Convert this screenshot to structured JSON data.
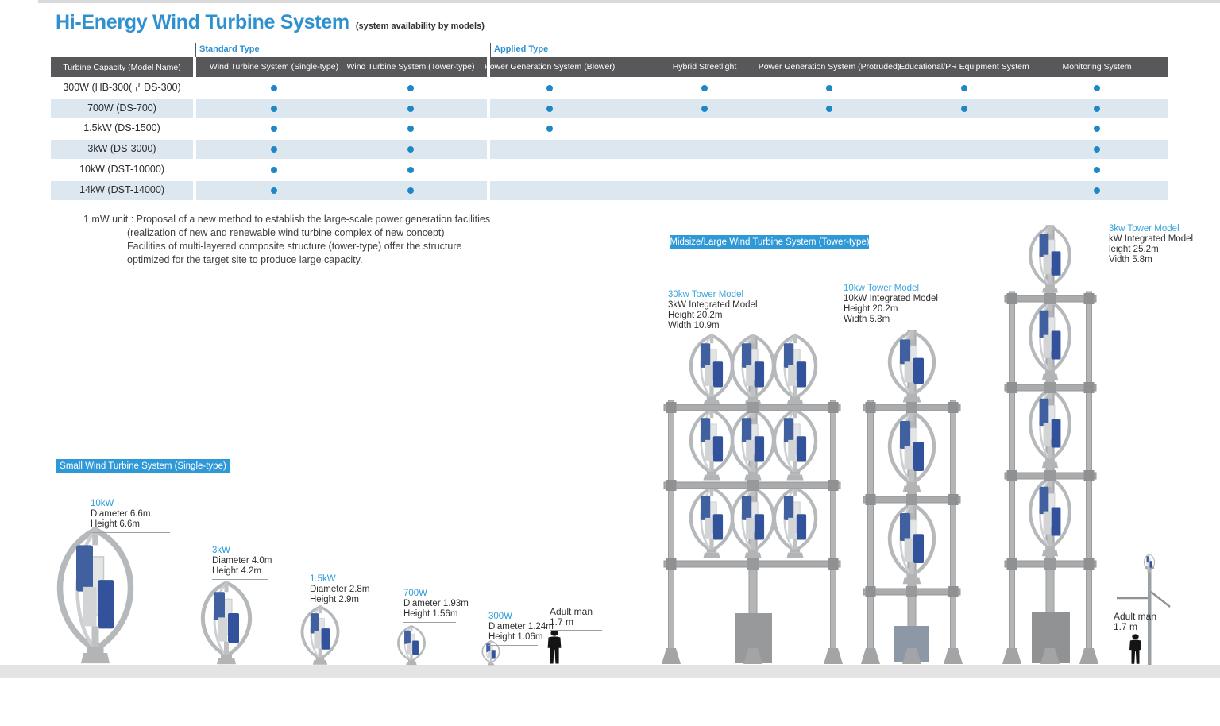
{
  "page": {
    "title": "Hi-Energy Wind Turbine System",
    "subtitle": "(system availability by models)"
  },
  "table": {
    "groups": [
      {
        "label": "Standard Type"
      },
      {
        "label": "Applied Type"
      }
    ],
    "row_header": "Turbine Capacity (Model Name)",
    "columns": [
      "Wind Turbine System (Single-type)",
      "Wind Turbine System (Tower-type)",
      "Power Generation System (Blower)",
      "Hybrid Streetlight",
      "Power Generation System (Protruded)",
      "Educational/PR Equipment System",
      "Monitoring System"
    ],
    "rows": [
      {
        "model": "300W (HB-300(구 DS-300)",
        "availability": [
          true,
          true,
          true,
          true,
          true,
          true,
          true
        ]
      },
      {
        "model": "700W (DS-700)",
        "availability": [
          true,
          true,
          true,
          true,
          true,
          true,
          true
        ]
      },
      {
        "model": "1.5kW (DS-1500)",
        "availability": [
          true,
          true,
          true,
          false,
          false,
          false,
          true
        ]
      },
      {
        "model": "3kW (DS-3000)",
        "availability": [
          true,
          true,
          false,
          false,
          false,
          false,
          true
        ]
      },
      {
        "model": "10kW (DST-10000)",
        "availability": [
          true,
          true,
          false,
          false,
          false,
          false,
          true
        ]
      },
      {
        "model": "14kW (DST-14000)",
        "availability": [
          true,
          true,
          false,
          false,
          false,
          false,
          true
        ]
      }
    ]
  },
  "note": {
    "lines": [
      "1 mW unit : Proposal of a new method to establish the large-scale power generation facilities",
      "(realization of new and renewable wind turbine complex of new concept)",
      "Facilities of multi-layered composite structure (tower-type) offer the structure",
      "optimized for the target site to produce large capacity."
    ]
  },
  "sections": {
    "midsize_badge": "Midsize/Large Wind Turbine System (Tower-type)",
    "small_badge": "Small Wind Turbine System (Single-type)"
  },
  "tower_models": [
    {
      "name": "30kw Tower Model",
      "specs": [
        "3kW Integrated Model",
        "Height 20.2m",
        "Width 10.9m"
      ]
    },
    {
      "name": "10kw Tower Model",
      "specs": [
        "10kW Integrated Model",
        "Height 20.2m",
        "Width 5.8m"
      ]
    },
    {
      "name": "3kw Tower Model",
      "specs": [
        "kW Integrated Model",
        "leight 25.2m",
        "Vidth 5.8m"
      ]
    }
  ],
  "small_models": [
    {
      "name": "10kW",
      "specs": [
        "Diameter 6.6m",
        "Height 6.6m"
      ]
    },
    {
      "name": "3kW",
      "specs": [
        "Diameter 4.0m",
        "Height 4.2m"
      ]
    },
    {
      "name": "1.5kW",
      "specs": [
        "Diameter 2.8m",
        "Height 2.9m"
      ]
    },
    {
      "name": "700W",
      "specs": [
        "Diameter 1.93m",
        "Height 1.56m"
      ]
    },
    {
      "name": "300W",
      "specs": [
        "Diameter 1.24m",
        "Height 1.06m"
      ]
    }
  ],
  "adult_man": {
    "label": "Adult man",
    "height": "1.7 m"
  },
  "colors": {
    "accent_blue": "#2e90cf",
    "badge_blue": "#2f99d8",
    "dot_blue": "#1e87c8",
    "header_gray": "#58585b",
    "row_alt": "#dde7f0",
    "blade_navy": "#32529b",
    "structure_gray": "#b3b5b7",
    "ground_gray": "#e4e4e4"
  }
}
